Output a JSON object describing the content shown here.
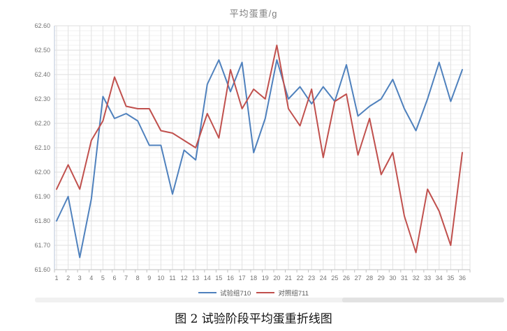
{
  "chart_data": {
    "type": "line",
    "title": "平均蛋重/g",
    "x": [
      1,
      2,
      3,
      4,
      5,
      6,
      7,
      8,
      9,
      10,
      11,
      12,
      13,
      14,
      15,
      16,
      17,
      18,
      19,
      20,
      21,
      22,
      23,
      24,
      25,
      26,
      27,
      28,
      29,
      30,
      31,
      32,
      33,
      34,
      35,
      36
    ],
    "x_tick_labels": [
      "1",
      "2",
      "3",
      "4",
      "5",
      "6",
      "7",
      "8",
      "9",
      "10",
      "11",
      "12",
      "13",
      "14",
      "15",
      "16",
      "17",
      "18",
      "19",
      "20",
      "21",
      "22",
      "23",
      "24",
      "25",
      "26",
      "27",
      "28",
      "29",
      "30",
      "31",
      "32",
      "33",
      "34",
      "35",
      "36"
    ],
    "series": [
      {
        "name": "试验组710",
        "color": "#4f81bd",
        "values": [
          61.8,
          61.9,
          61.65,
          61.89,
          62.31,
          62.22,
          62.24,
          62.21,
          62.11,
          62.11,
          61.91,
          62.09,
          62.05,
          62.36,
          62.46,
          62.33,
          62.45,
          62.08,
          62.22,
          62.46,
          62.3,
          62.35,
          62.28,
          62.35,
          62.29,
          62.44,
          62.23,
          62.27,
          62.3,
          62.38,
          62.26,
          62.17,
          62.3,
          62.45,
          62.29,
          62.42
        ]
      },
      {
        "name": "对照组711",
        "color": "#c0504d",
        "values": [
          61.93,
          62.03,
          61.93,
          62.13,
          62.21,
          62.39,
          62.27,
          62.26,
          62.26,
          62.17,
          62.16,
          62.13,
          62.1,
          62.24,
          62.14,
          62.42,
          62.26,
          62.34,
          62.3,
          62.52,
          62.26,
          62.19,
          62.34,
          62.06,
          62.29,
          62.32,
          62.07,
          62.22,
          61.99,
          62.08,
          61.82,
          61.67,
          61.93,
          61.84,
          61.7,
          62.08
        ]
      }
    ],
    "ylim": [
      61.6,
      62.6
    ],
    "y_tick_step": 0.1,
    "y_minor_step": 0.02,
    "y_tick_labels": [
      "61.60",
      "61.70",
      "61.80",
      "61.90",
      "62.00",
      "62.10",
      "62.20",
      "62.30",
      "62.40",
      "62.50",
      "62.60"
    ],
    "grid": true,
    "legend_position": "bottom"
  },
  "caption": "图 2 试验阶段平均蛋重折线图"
}
